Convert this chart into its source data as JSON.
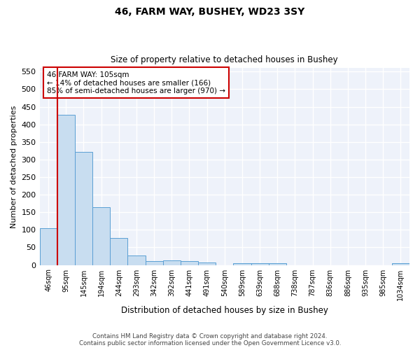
{
  "title1": "46, FARM WAY, BUSHEY, WD23 3SY",
  "title2": "Size of property relative to detached houses in Bushey",
  "xlabel": "Distribution of detached houses by size in Bushey",
  "ylabel": "Number of detached properties",
  "categories": [
    "46sqm",
    "95sqm",
    "145sqm",
    "194sqm",
    "244sqm",
    "293sqm",
    "342sqm",
    "392sqm",
    "441sqm",
    "491sqm",
    "540sqm",
    "589sqm",
    "639sqm",
    "688sqm",
    "738sqm",
    "787sqm",
    "836sqm",
    "886sqm",
    "935sqm",
    "985sqm",
    "1034sqm"
  ],
  "values": [
    105,
    428,
    322,
    165,
    76,
    26,
    12,
    13,
    11,
    8,
    0,
    6,
    6,
    6,
    0,
    0,
    0,
    0,
    0,
    0,
    6
  ],
  "bar_color": "#c8ddf0",
  "bar_edge_color": "#5a9fd4",
  "vline_color": "#cc0000",
  "annotation_line1": "46 FARM WAY: 105sqm",
  "annotation_line2": "← 14% of detached houses are smaller (166)",
  "annotation_line3": "85% of semi-detached houses are larger (970) →",
  "annotation_box_facecolor": "#ffffff",
  "annotation_box_edgecolor": "#cc0000",
  "ylim": [
    0,
    560
  ],
  "yticks": [
    0,
    50,
    100,
    150,
    200,
    250,
    300,
    350,
    400,
    450,
    500,
    550
  ],
  "footer1": "Contains HM Land Registry data © Crown copyright and database right 2024.",
  "footer2": "Contains public sector information licensed under the Open Government Licence v3.0.",
  "plot_bg_color": "#eef2fa",
  "fig_bg_color": "#ffffff",
  "grid_color": "#ffffff"
}
